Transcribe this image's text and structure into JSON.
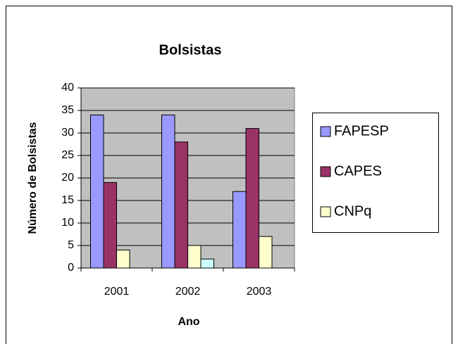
{
  "chart_data": {
    "type": "bar",
    "title": "Bolsistas",
    "x_label": "Ano",
    "y_label": "Número de Bolsistas",
    "categories": [
      "2001",
      "2002",
      "2003"
    ],
    "series": [
      {
        "name": "FAPESP",
        "color": "#9999ff",
        "values": [
          34,
          34,
          17
        ]
      },
      {
        "name": "CAPES",
        "color": "#993366",
        "values": [
          19,
          28,
          31
        ]
      },
      {
        "name": "CNPq",
        "color": "#ffffcc",
        "values": [
          4,
          5,
          7
        ]
      },
      {
        "color": "#ccffff",
        "values": [
          null,
          2,
          null
        ]
      }
    ],
    "ylim": [
      0,
      40
    ],
    "yticks": [
      0,
      5,
      10,
      15,
      20,
      25,
      30,
      35,
      40
    ],
    "grid": true,
    "legend": "right"
  }
}
